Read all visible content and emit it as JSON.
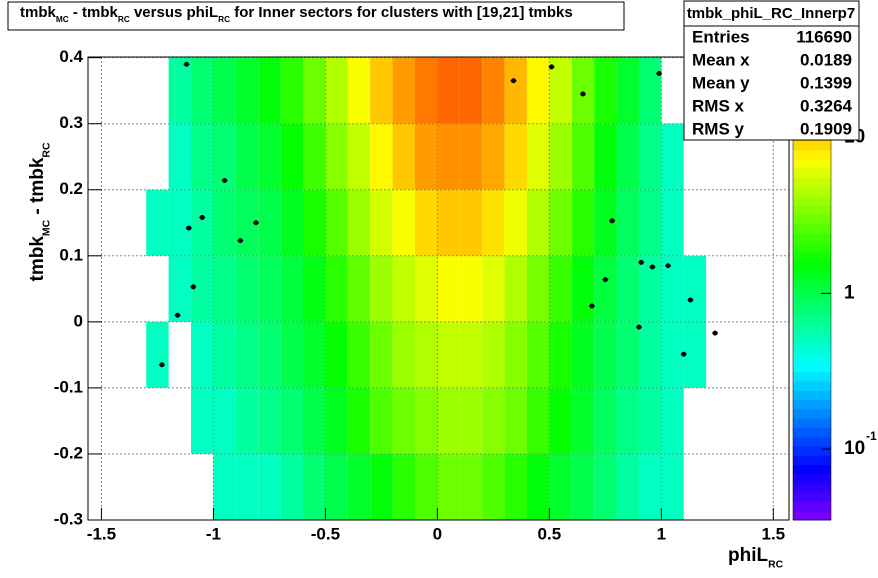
{
  "chart_data": {
    "type": "heatmap",
    "title": [
      "tmbk",
      "MC",
      " - tmbk",
      "RC",
      " versus phiL",
      "RC",
      " for Inner sectors for clusters with [19,21] tmbks"
    ],
    "x_label": [
      "phiL",
      "RC"
    ],
    "y_label": [
      "tmbk",
      "MC",
      " - tmbk",
      "RC"
    ],
    "x_edges": [
      -1.3,
      -1.2,
      -1.1,
      -1.0,
      -0.9,
      -0.8,
      -0.7,
      -0.6,
      -0.5,
      -0.4,
      -0.3,
      -0.2,
      -0.1,
      0,
      0.1,
      0.2,
      0.3,
      0.4,
      0.5,
      0.6,
      0.7,
      0.8,
      0.9,
      1.0,
      1.1,
      1.2,
      1.3
    ],
    "y_edges": [
      -0.3,
      -0.2,
      -0.1,
      0,
      0.1,
      0.2,
      0.3,
      0.4
    ],
    "z": [
      [
        0,
        0,
        0,
        0.5,
        0.5,
        0.5,
        0.6,
        0.8,
        1,
        1.2,
        1.5,
        2,
        2.5,
        3,
        3,
        2.5,
        2,
        1.5,
        1.2,
        1,
        0.8,
        0.6,
        0.5,
        0.5,
        0,
        0
      ],
      [
        0,
        0,
        0.5,
        0.5,
        0.6,
        0.7,
        0.8,
        1,
        1.3,
        1.8,
        2.5,
        3,
        3.5,
        4,
        4,
        3.5,
        3,
        2.2,
        1.6,
        1.2,
        0.9,
        0.7,
        0.6,
        0.5,
        0,
        0
      ],
      [
        0.5,
        0,
        0.5,
        0.6,
        0.7,
        0.8,
        1,
        1.2,
        1.6,
        2.2,
        3,
        4,
        4.5,
        5,
        5,
        4.5,
        3.5,
        2.6,
        1.8,
        1.3,
        1,
        0.8,
        0.6,
        0.5,
        0.5,
        0
      ],
      [
        0,
        0.5,
        0.6,
        0.7,
        0.8,
        0.9,
        1.1,
        1.4,
        2,
        2.8,
        4,
        5,
        6,
        7,
        7,
        6,
        4.5,
        3.2,
        2.2,
        1.5,
        1.1,
        0.8,
        0.6,
        0.5,
        0.5,
        0
      ],
      [
        0.5,
        0.5,
        0.6,
        0.8,
        0.9,
        1,
        1.3,
        1.8,
        2.6,
        4,
        5.5,
        7,
        9,
        10,
        10,
        8.5,
        6.5,
        4.5,
        3,
        2,
        1.3,
        0.9,
        0.7,
        0.5,
        0,
        0
      ],
      [
        0,
        0.5,
        0.7,
        0.8,
        1,
        1.2,
        1.6,
        2.3,
        3.5,
        5,
        7.5,
        10,
        13,
        14,
        14,
        12,
        9,
        6,
        4,
        2.5,
        1.5,
        1,
        0.7,
        0.5,
        0,
        0
      ],
      [
        0,
        0.6,
        0.8,
        1,
        1.2,
        1.5,
        2,
        3,
        4.5,
        7,
        10,
        13,
        16,
        18,
        18,
        15,
        11,
        7.5,
        5,
        3,
        1.8,
        1.2,
        0.8,
        0,
        0,
        0
      ]
    ],
    "profile": {
      "x": [
        -1.23,
        -1.16,
        -1.12,
        -1.11,
        -1.09,
        -1.05,
        -0.95,
        -0.88,
        -0.81,
        0.34,
        0.51,
        0.65,
        0.69,
        0.75,
        0.78,
        0.9,
        0.91,
        0.96,
        0.99,
        1.03,
        1.1,
        1.13,
        1.24
      ],
      "y": [
        -0.065,
        0.01,
        0.39,
        0.142,
        0.053,
        0.158,
        0.214,
        0.123,
        0.15,
        0.365,
        0.386,
        0.345,
        0.024,
        0.064,
        0.153,
        -0.008,
        0.09,
        0.083,
        0.376,
        0.085,
        -0.049,
        0.033,
        -0.017
      ],
      "color": "#000000"
    },
    "xlim": [
      -1.56,
      1.57
    ],
    "ylim": [
      -0.3,
      0.401
    ],
    "xticks": [
      -1.5,
      -1,
      -0.5,
      0,
      0.5,
      1,
      1.5
    ],
    "yticks": [
      -0.3,
      -0.2,
      -0.1,
      0,
      0.1,
      0.2,
      0.3,
      0.4
    ],
    "zlim": [
      0.035,
      33
    ],
    "zlog": true,
    "zticks": [
      {
        "value": 0.1,
        "label": "10",
        "exponent": "-1"
      },
      1,
      10
    ],
    "grid": true,
    "stats": {
      "name": "tmbk_phiL_RC_Innerp7",
      "rows": [
        [
          "Entries",
          116690
        ],
        [
          "Mean x",
          0.0189
        ],
        [
          "Mean y",
          0.1399
        ],
        [
          "RMS x",
          0.3264
        ],
        [
          "RMS y",
          0.1909
        ]
      ]
    }
  }
}
